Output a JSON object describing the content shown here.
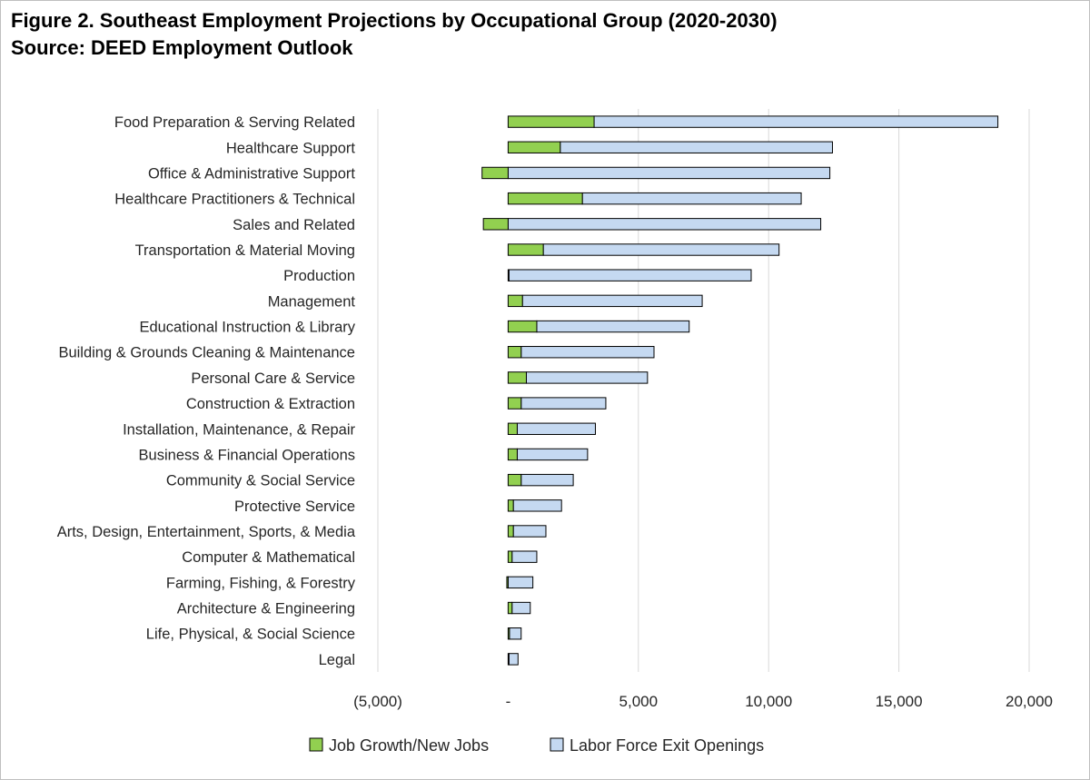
{
  "chart_data": {
    "type": "bar",
    "orientation": "horizontal",
    "stacked": true,
    "title": "Figure 2. Southeast Employment Projections by Occupational Group (2020-2030)",
    "subtitle": "Source: DEED Employment Outlook",
    "categories": [
      "Food Preparation & Serving Related",
      "Healthcare Support",
      "Office & Administrative Support",
      "Healthcare Practitioners & Technical",
      "Sales and Related",
      "Transportation & Material Moving",
      "Production",
      "Management",
      "Educational Instruction & Library",
      "Building & Grounds Cleaning & Maintenance",
      "Personal Care & Service",
      "Construction & Extraction",
      "Installation, Maintenance, & Repair",
      "Business & Financial Operations",
      "Community & Social Service",
      "Protective Service",
      "Arts, Design, Entertainment, Sports, & Media",
      "Computer & Mathematical",
      "Farming, Fishing, & Forestry",
      "Architecture & Engineering",
      "Life, Physical, & Social Science",
      "Legal"
    ],
    "series": [
      {
        "name": "Job Growth/New Jobs",
        "color": "#92d050",
        "values": [
          3300,
          2000,
          -1000,
          2850,
          -950,
          1350,
          30,
          550,
          1100,
          500,
          700,
          500,
          350,
          350,
          500,
          200,
          200,
          150,
          -50,
          150,
          50,
          30
        ]
      },
      {
        "name": "Labor Force Exit Openings",
        "color": "#c5d9f1",
        "values": [
          15500,
          10450,
          12350,
          8400,
          12000,
          9050,
          9300,
          6900,
          5850,
          5100,
          4650,
          3250,
          3000,
          2700,
          2000,
          1850,
          1250,
          950,
          950,
          700,
          450,
          350
        ]
      }
    ],
    "xlim": [
      -5000,
      20000
    ],
    "xticks": [
      -5000,
      0,
      5000,
      10000,
      15000,
      20000
    ],
    "xtick_labels": [
      "(5,000)",
      "-",
      "5,000",
      "10,000",
      "15,000",
      "20,000"
    ],
    "grid": "vertical",
    "legend_position": "bottom"
  }
}
